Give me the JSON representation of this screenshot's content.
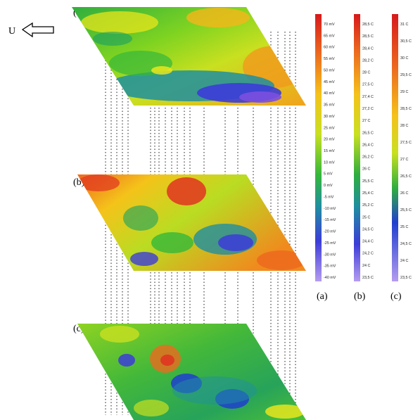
{
  "flow_arrow": {
    "label": "U",
    "icon": "left-arrow-icon"
  },
  "panel_labels": [
    "(a)",
    "(b)",
    "(c)"
  ],
  "legends": [
    {
      "id": "a",
      "caption": "(a)",
      "ticks": [
        "70 mV",
        "65 mV",
        "60 mV",
        "55 mV",
        "50 mV",
        "45 mV",
        "40 mV",
        "35 mV",
        "30 mV",
        "25 mV",
        "20 mV",
        "15 mV",
        "10 mV",
        "5 mV",
        "0 mV",
        "-5 mV",
        "-10 mV",
        "-15 mV",
        "-20 mV",
        "-25 mV",
        "-30 mV",
        "-35 mV",
        "-40 mV"
      ]
    },
    {
      "id": "b",
      "caption": "(b)",
      "ticks": [
        "28,5 C",
        "28,5 C",
        "28,4 C",
        "28,2 C",
        "28 C",
        "27,5 C",
        "27,4 C",
        "27,2 C",
        "27 C",
        "26,5 C",
        "26,4 C",
        "26,2 C",
        "26 C",
        "25,5 C",
        "25,4 C",
        "25,2 C",
        "25 C",
        "24,5 C",
        "24,4 C",
        "24,2 C",
        "24 C",
        "23,5 C"
      ]
    },
    {
      "id": "c",
      "caption": "(c)",
      "ticks": [
        "31 C",
        "30,5 C",
        "30 C",
        "29,5 C",
        "29 C",
        "28,5 C",
        "28 C",
        "27,5 C",
        "27 C",
        "26,5 C",
        "26 C",
        "25,5 C",
        "25 C",
        "24,5 C",
        "24 C",
        "23,5 C"
      ]
    }
  ],
  "colors": {
    "scale": [
      "#7b4fe0",
      "#3c3cd8",
      "#1f5fcf",
      "#1f8fa0",
      "#1aa060",
      "#35b83a",
      "#7ed321",
      "#c8e020",
      "#f2e81a",
      "#f5c21a",
      "#f19a1c",
      "#ec6a1e",
      "#e03520",
      "#d7191c"
    ],
    "leader_line": "#000000",
    "text": "#000000"
  }
}
